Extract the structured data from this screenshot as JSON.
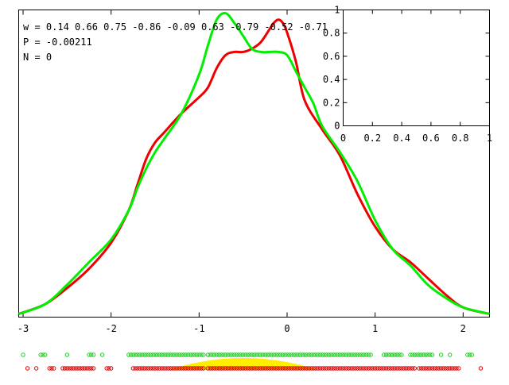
{
  "stats": {
    "w_text": "w = 0.14 0.66 0.75 -0.86 -0.09 0.63 -0.79 -0.52 -0.71",
    "p_text": "P = -0.00211",
    "n_text": "N = 0"
  },
  "chart_data": [
    {
      "type": "line",
      "title": "",
      "xlabel": "",
      "ylabel": "",
      "xlim": [
        -3.05,
        2.3
      ],
      "ylim": [
        0,
        0.95
      ],
      "x_ticks": [
        -3,
        -2,
        -1,
        0,
        1,
        2
      ],
      "x_tick_labels": [
        "-3",
        "-2",
        "-1",
        "0",
        "1",
        "2"
      ],
      "grid": false,
      "colors": {
        "series_1": "#ee0000",
        "series_2": "#00ee00"
      },
      "series": [
        {
          "color": "#ee0000",
          "x": [
            -3.05,
            -2.75,
            -2.5,
            -2.25,
            -2.0,
            -1.8,
            -1.7,
            -1.6,
            -1.5,
            -1.4,
            -1.2,
            -1.0,
            -0.9,
            -0.8,
            -0.7,
            -0.6,
            -0.5,
            -0.4,
            -0.3,
            -0.2,
            -0.15,
            -0.1,
            -0.05,
            0.0,
            0.1,
            0.2,
            0.4,
            0.6,
            0.8,
            1.0,
            1.2,
            1.4,
            1.6,
            1.8,
            2.0,
            2.3
          ],
          "y": [
            0.01,
            0.04,
            0.09,
            0.15,
            0.23,
            0.33,
            0.41,
            0.49,
            0.54,
            0.57,
            0.63,
            0.68,
            0.71,
            0.77,
            0.81,
            0.82,
            0.82,
            0.83,
            0.85,
            0.89,
            0.91,
            0.92,
            0.91,
            0.88,
            0.79,
            0.67,
            0.58,
            0.5,
            0.38,
            0.28,
            0.21,
            0.17,
            0.12,
            0.07,
            0.03,
            0.01
          ]
        },
        {
          "color": "#00ee00",
          "x": [
            -3.05,
            -2.75,
            -2.5,
            -2.25,
            -2.0,
            -1.8,
            -1.7,
            -1.6,
            -1.5,
            -1.4,
            -1.2,
            -1.0,
            -0.9,
            -0.8,
            -0.7,
            -0.6,
            -0.5,
            -0.4,
            -0.3,
            -0.2,
            -0.1,
            0.0,
            0.1,
            0.2,
            0.3,
            0.4,
            0.6,
            0.8,
            1.0,
            1.2,
            1.4,
            1.6,
            1.8,
            2.0,
            2.3
          ],
          "y": [
            0.01,
            0.04,
            0.1,
            0.17,
            0.24,
            0.33,
            0.4,
            0.46,
            0.51,
            0.55,
            0.63,
            0.75,
            0.84,
            0.92,
            0.94,
            0.91,
            0.87,
            0.83,
            0.82,
            0.82,
            0.82,
            0.81,
            0.76,
            0.71,
            0.66,
            0.59,
            0.51,
            0.42,
            0.3,
            0.21,
            0.16,
            0.1,
            0.06,
            0.03,
            0.01
          ]
        }
      ]
    },
    {
      "type": "line",
      "title": "",
      "xlabel": "",
      "ylabel": "",
      "xlim": [
        0,
        1
      ],
      "ylim": [
        0,
        1
      ],
      "x_ticks": [
        0,
        0.2,
        0.4,
        0.6,
        0.8,
        1
      ],
      "x_tick_labels": [
        "0",
        "0.2",
        "0.4",
        "0.6",
        "0.8",
        "1"
      ],
      "y_ticks": [
        0,
        0.2,
        0.4,
        0.6,
        0.8,
        1
      ],
      "y_tick_labels": [
        "0",
        "0.2",
        "0.4",
        "0.6",
        "0.8",
        "1"
      ],
      "grid": false,
      "series": []
    }
  ],
  "sample_strip": {
    "band_color": "#ffee00",
    "green_color": "#22cc22",
    "red_color": "#dd0000",
    "green_runs": [
      [
        -3.0,
        -3.0
      ],
      [
        -2.8,
        -2.75
      ],
      [
        -2.5,
        -2.5
      ],
      [
        -2.25,
        -2.2
      ],
      [
        -2.1,
        -2.1
      ],
      [
        -1.8,
        -0.95
      ],
      [
        -0.9,
        0.95
      ],
      [
        1.1,
        1.3
      ],
      [
        1.4,
        1.65
      ],
      [
        1.75,
        1.75
      ],
      [
        1.85,
        1.85
      ],
      [
        2.05,
        2.1
      ]
    ],
    "red_runs": [
      [
        -2.95,
        -2.95
      ],
      [
        -2.85,
        -2.85
      ],
      [
        -2.7,
        -2.65
      ],
      [
        -2.55,
        -2.2
      ],
      [
        -2.05,
        -2.0
      ],
      [
        -1.75,
        -0.95
      ],
      [
        -0.9,
        1.45
      ],
      [
        1.5,
        1.95
      ],
      [
        2.2,
        2.2
      ]
    ],
    "band": {
      "center": -0.5,
      "halfwidth": 0.85,
      "height_fraction": 1.0
    }
  }
}
